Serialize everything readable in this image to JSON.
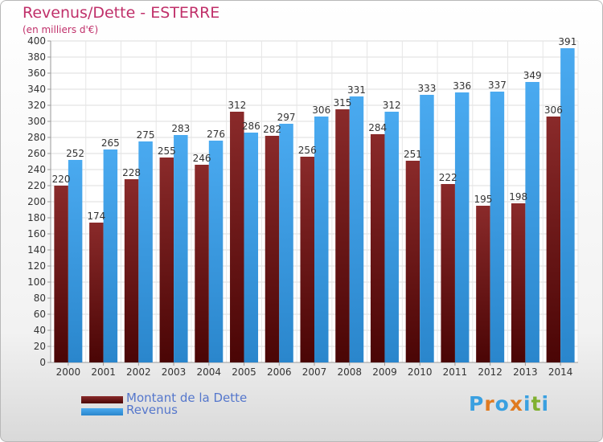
{
  "header": {
    "title": "Revenus/Dette - ESTERRE",
    "subtitle": "(en milliers d'€)"
  },
  "legend": {
    "items": [
      {
        "label": "Montant de la Dette",
        "color": "#7a1a1a"
      },
      {
        "label": "Revenus",
        "color": "#3a9ce0"
      }
    ]
  },
  "logo": {
    "letters": [
      "P",
      "r",
      "o",
      "x",
      "i",
      "t",
      "i"
    ],
    "colors": [
      "#3aa0e0",
      "#e07a20",
      "#3aa0e0",
      "#e07a20",
      "#3aa0e0",
      "#80b030",
      "#3aa0e0"
    ]
  },
  "chart_data": {
    "type": "bar",
    "title": "Revenus/Dette - ESTERRE",
    "subtitle": "(en milliers d'€)",
    "categories": [
      "2000",
      "2001",
      "2002",
      "2003",
      "2004",
      "2005",
      "2006",
      "2007",
      "2008",
      "2009",
      "2010",
      "2011",
      "2012",
      "2013",
      "2014"
    ],
    "series": [
      {
        "name": "Montant de la Dette",
        "color": "#7a1a1a",
        "values": [
          220,
          174,
          228,
          255,
          246,
          312,
          282,
          256,
          315,
          284,
          251,
          222,
          195,
          198,
          306
        ]
      },
      {
        "name": "Revenus",
        "color": "#3a9ce0",
        "values": [
          252,
          265,
          275,
          283,
          276,
          286,
          297,
          306,
          331,
          312,
          333,
          336,
          337,
          349,
          391
        ]
      }
    ],
    "ylim": [
      0,
      400
    ],
    "ytick_step": 20,
    "grid": true,
    "legend_position": "bottom-left"
  }
}
